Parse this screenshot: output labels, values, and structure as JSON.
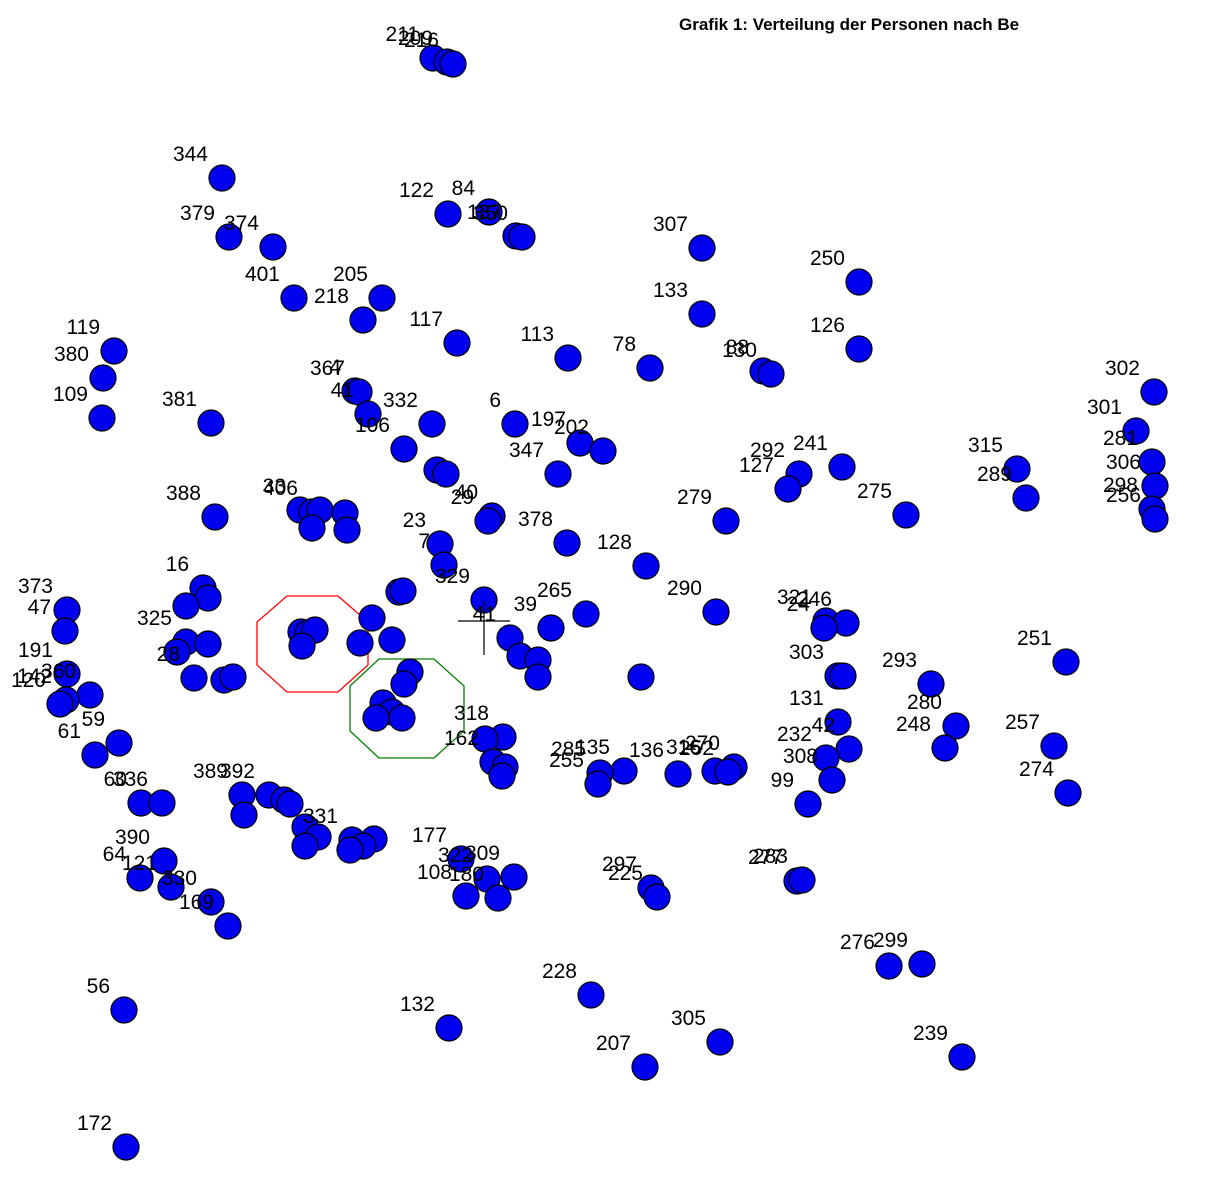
{
  "chart_data": {
    "type": "scatter",
    "title": "Grafik 1: Verteilung der Personen nach Be",
    "xlabel": "",
    "ylabel": "",
    "xlim": [
      0,
      1215
    ],
    "ylim": [
      0,
      1194
    ],
    "grid": false,
    "colors": {
      "point_fill": "#0000ee",
      "point_stroke": "#000000",
      "hull_1": "#ff0000",
      "hull_2": "#008000",
      "centroid": "#000000"
    },
    "hulls": [
      {
        "name": "",
        "color": "#ff0000",
        "vertices": [
          [
            287,
            596
          ],
          [
            338,
            596
          ],
          [
            368,
            622
          ],
          [
            368,
            665
          ],
          [
            338,
            692
          ],
          [
            287,
            692
          ],
          [
            257,
            665
          ],
          [
            257,
            622
          ]
        ]
      },
      {
        "name": "",
        "color": "#008000",
        "vertices": [
          [
            379,
            659
          ],
          [
            434,
            659
          ],
          [
            464,
            686
          ],
          [
            464,
            731
          ],
          [
            434,
            758
          ],
          [
            379,
            758
          ],
          [
            350,
            731
          ],
          [
            350,
            686
          ]
        ]
      }
    ],
    "centroid": {
      "x": 484,
      "y": 621
    },
    "points": [
      {
        "x": 433,
        "y": 58,
        "label": "211"
      },
      {
        "x": 447,
        "y": 62,
        "label": "209"
      },
      {
        "x": 453,
        "y": 64,
        "label": "216"
      },
      {
        "x": 222,
        "y": 178,
        "label": "344"
      },
      {
        "x": 489,
        "y": 212,
        "label": "84"
      },
      {
        "x": 448,
        "y": 214,
        "label": "122"
      },
      {
        "x": 516,
        "y": 236,
        "label": "137"
      },
      {
        "x": 522,
        "y": 237,
        "label": "350"
      },
      {
        "x": 229,
        "y": 237,
        "label": "379"
      },
      {
        "x": 273,
        "y": 247,
        "label": "374"
      },
      {
        "x": 702,
        "y": 248,
        "label": "307"
      },
      {
        "x": 859,
        "y": 282,
        "label": "250"
      },
      {
        "x": 294,
        "y": 298,
        "label": "401"
      },
      {
        "x": 382,
        "y": 298,
        "label": "205"
      },
      {
        "x": 363,
        "y": 320,
        "label": "218"
      },
      {
        "x": 702,
        "y": 314,
        "label": "133"
      },
      {
        "x": 457,
        "y": 343,
        "label": "117"
      },
      {
        "x": 859,
        "y": 349,
        "label": "126"
      },
      {
        "x": 114,
        "y": 351,
        "label": "119"
      },
      {
        "x": 568,
        "y": 358,
        "label": "113"
      },
      {
        "x": 103,
        "y": 378,
        "label": "380"
      },
      {
        "x": 650,
        "y": 368,
        "label": "78"
      },
      {
        "x": 763,
        "y": 371,
        "label": "88"
      },
      {
        "x": 771,
        "y": 374,
        "label": "130"
      },
      {
        "x": 355,
        "y": 391,
        "label": "4"
      },
      {
        "x": 359,
        "y": 392,
        "label": "367"
      },
      {
        "x": 368,
        "y": 414,
        "label": "41"
      },
      {
        "x": 1154,
        "y": 392,
        "label": "302"
      },
      {
        "x": 102,
        "y": 418,
        "label": "109"
      },
      {
        "x": 211,
        "y": 423,
        "label": "381"
      },
      {
        "x": 432,
        "y": 424,
        "label": "332"
      },
      {
        "x": 515,
        "y": 424,
        "label": "6"
      },
      {
        "x": 404,
        "y": 449,
        "label": "106"
      },
      {
        "x": 1136,
        "y": 431,
        "label": "301"
      },
      {
        "x": 580,
        "y": 443,
        "label": "197"
      },
      {
        "x": 603,
        "y": 451,
        "label": "202"
      },
      {
        "x": 437,
        "y": 470,
        "label": ""
      },
      {
        "x": 446,
        "y": 474,
        "label": ""
      },
      {
        "x": 558,
        "y": 474,
        "label": "347"
      },
      {
        "x": 842,
        "y": 467,
        "label": "241"
      },
      {
        "x": 799,
        "y": 474,
        "label": "292"
      },
      {
        "x": 788,
        "y": 489,
        "label": "127"
      },
      {
        "x": 1017,
        "y": 469,
        "label": "315"
      },
      {
        "x": 1152,
        "y": 462,
        "label": "281"
      },
      {
        "x": 1155,
        "y": 486,
        "label": "306"
      },
      {
        "x": 1026,
        "y": 498,
        "label": "289"
      },
      {
        "x": 1152,
        "y": 509,
        "label": "298"
      },
      {
        "x": 1155,
        "y": 519,
        "label": "256"
      },
      {
        "x": 906,
        "y": 515,
        "label": "275"
      },
      {
        "x": 726,
        "y": 521,
        "label": "279"
      },
      {
        "x": 492,
        "y": 516,
        "label": "40"
      },
      {
        "x": 488,
        "y": 521,
        "label": "29"
      },
      {
        "x": 215,
        "y": 517,
        "label": "388"
      },
      {
        "x": 300,
        "y": 510,
        "label": "33"
      },
      {
        "x": 312,
        "y": 512,
        "label": "406"
      },
      {
        "x": 320,
        "y": 510,
        "label": ""
      },
      {
        "x": 345,
        "y": 513,
        "label": ""
      },
      {
        "x": 347,
        "y": 530,
        "label": ""
      },
      {
        "x": 312,
        "y": 528,
        "label": ""
      },
      {
        "x": 567,
        "y": 543,
        "label": "378"
      },
      {
        "x": 440,
        "y": 544,
        "label": "23"
      },
      {
        "x": 444,
        "y": 565,
        "label": "7"
      },
      {
        "x": 646,
        "y": 566,
        "label": "128"
      },
      {
        "x": 203,
        "y": 588,
        "label": "16"
      },
      {
        "x": 208,
        "y": 598,
        "label": ""
      },
      {
        "x": 186,
        "y": 606,
        "label": ""
      },
      {
        "x": 67,
        "y": 610,
        "label": "373"
      },
      {
        "x": 65,
        "y": 631,
        "label": "47"
      },
      {
        "x": 399,
        "y": 592,
        "label": ""
      },
      {
        "x": 403,
        "y": 591,
        "label": ""
      },
      {
        "x": 484,
        "y": 600,
        "label": "329"
      },
      {
        "x": 586,
        "y": 614,
        "label": "265"
      },
      {
        "x": 716,
        "y": 612,
        "label": "290"
      },
      {
        "x": 826,
        "y": 621,
        "label": "321"
      },
      {
        "x": 846,
        "y": 623,
        "label": "246"
      },
      {
        "x": 824,
        "y": 628,
        "label": "24"
      },
      {
        "x": 372,
        "y": 618,
        "label": ""
      },
      {
        "x": 551,
        "y": 628,
        "label": "39"
      },
      {
        "x": 510,
        "y": 638,
        "label": "41"
      },
      {
        "x": 301,
        "y": 632,
        "label": ""
      },
      {
        "x": 308,
        "y": 633,
        "label": ""
      },
      {
        "x": 315,
        "y": 630,
        "label": ""
      },
      {
        "x": 302,
        "y": 646,
        "label": ""
      },
      {
        "x": 360,
        "y": 643,
        "label": ""
      },
      {
        "x": 392,
        "y": 640,
        "label": ""
      },
      {
        "x": 186,
        "y": 642,
        "label": "325"
      },
      {
        "x": 208,
        "y": 644,
        "label": ""
      },
      {
        "x": 177,
        "y": 652,
        "label": ""
      },
      {
        "x": 520,
        "y": 656,
        "label": ""
      },
      {
        "x": 538,
        "y": 660,
        "label": ""
      },
      {
        "x": 1066,
        "y": 662,
        "label": "251"
      },
      {
        "x": 538,
        "y": 677,
        "label": ""
      },
      {
        "x": 641,
        "y": 677,
        "label": ""
      },
      {
        "x": 838,
        "y": 676,
        "label": "303"
      },
      {
        "x": 843,
        "y": 676,
        "label": ""
      },
      {
        "x": 931,
        "y": 684,
        "label": "293"
      },
      {
        "x": 67,
        "y": 674,
        "label": "191"
      },
      {
        "x": 90,
        "y": 695,
        "label": "360"
      },
      {
        "x": 66,
        "y": 700,
        "label": "142"
      },
      {
        "x": 60,
        "y": 704,
        "label": "120"
      },
      {
        "x": 194,
        "y": 678,
        "label": "28"
      },
      {
        "x": 224,
        "y": 680,
        "label": ""
      },
      {
        "x": 233,
        "y": 677,
        "label": ""
      },
      {
        "x": 410,
        "y": 672,
        "label": ""
      },
      {
        "x": 404,
        "y": 684,
        "label": ""
      },
      {
        "x": 383,
        "y": 703,
        "label": ""
      },
      {
        "x": 392,
        "y": 712,
        "label": ""
      },
      {
        "x": 402,
        "y": 718,
        "label": ""
      },
      {
        "x": 376,
        "y": 718,
        "label": ""
      },
      {
        "x": 838,
        "y": 722,
        "label": "131"
      },
      {
        "x": 956,
        "y": 726,
        "label": "280"
      },
      {
        "x": 945,
        "y": 748,
        "label": "248"
      },
      {
        "x": 1054,
        "y": 746,
        "label": "257"
      },
      {
        "x": 1068,
        "y": 793,
        "label": "274"
      },
      {
        "x": 119,
        "y": 743,
        "label": "59"
      },
      {
        "x": 95,
        "y": 755,
        "label": "61"
      },
      {
        "x": 503,
        "y": 737,
        "label": "318"
      },
      {
        "x": 485,
        "y": 739,
        "label": ""
      },
      {
        "x": 493,
        "y": 762,
        "label": "162"
      },
      {
        "x": 505,
        "y": 767,
        "label": ""
      },
      {
        "x": 502,
        "y": 776,
        "label": ""
      },
      {
        "x": 849,
        "y": 749,
        "label": "42"
      },
      {
        "x": 826,
        "y": 758,
        "label": "232"
      },
      {
        "x": 832,
        "y": 780,
        "label": "308"
      },
      {
        "x": 808,
        "y": 804,
        "label": "99"
      },
      {
        "x": 624,
        "y": 771,
        "label": "135"
      },
      {
        "x": 600,
        "y": 773,
        "label": "285"
      },
      {
        "x": 598,
        "y": 784,
        "label": "255"
      },
      {
        "x": 678,
        "y": 774,
        "label": "136"
      },
      {
        "x": 715,
        "y": 771,
        "label": "316"
      },
      {
        "x": 734,
        "y": 767,
        "label": "270"
      },
      {
        "x": 728,
        "y": 772,
        "label": "252"
      },
      {
        "x": 242,
        "y": 795,
        "label": "389"
      },
      {
        "x": 244,
        "y": 815,
        "label": ""
      },
      {
        "x": 269,
        "y": 795,
        "label": "392"
      },
      {
        "x": 284,
        "y": 800,
        "label": ""
      },
      {
        "x": 290,
        "y": 804,
        "label": ""
      },
      {
        "x": 305,
        "y": 827,
        "label": ""
      },
      {
        "x": 318,
        "y": 837,
        "label": ""
      },
      {
        "x": 305,
        "y": 846,
        "label": ""
      },
      {
        "x": 141,
        "y": 803,
        "label": "60"
      },
      {
        "x": 162,
        "y": 803,
        "label": "336"
      },
      {
        "x": 352,
        "y": 840,
        "label": "331"
      },
      {
        "x": 374,
        "y": 839,
        "label": ""
      },
      {
        "x": 363,
        "y": 846,
        "label": ""
      },
      {
        "x": 350,
        "y": 850,
        "label": ""
      },
      {
        "x": 164,
        "y": 861,
        "label": "390"
      },
      {
        "x": 140,
        "y": 878,
        "label": "64"
      },
      {
        "x": 171,
        "y": 887,
        "label": "121"
      },
      {
        "x": 211,
        "y": 902,
        "label": "330"
      },
      {
        "x": 228,
        "y": 926,
        "label": "169"
      },
      {
        "x": 461,
        "y": 859,
        "label": "177"
      },
      {
        "x": 487,
        "y": 879,
        "label": "322"
      },
      {
        "x": 514,
        "y": 877,
        "label": "309"
      },
      {
        "x": 466,
        "y": 896,
        "label": "108"
      },
      {
        "x": 498,
        "y": 898,
        "label": "180"
      },
      {
        "x": 651,
        "y": 888,
        "label": "297"
      },
      {
        "x": 657,
        "y": 897,
        "label": "225"
      },
      {
        "x": 797,
        "y": 881,
        "label": "277"
      },
      {
        "x": 802,
        "y": 880,
        "label": "283"
      },
      {
        "x": 889,
        "y": 966,
        "label": "276"
      },
      {
        "x": 922,
        "y": 964,
        "label": "299"
      },
      {
        "x": 591,
        "y": 995,
        "label": "228"
      },
      {
        "x": 124,
        "y": 1010,
        "label": "56"
      },
      {
        "x": 449,
        "y": 1028,
        "label": "132"
      },
      {
        "x": 720,
        "y": 1042,
        "label": "305"
      },
      {
        "x": 645,
        "y": 1067,
        "label": "207"
      },
      {
        "x": 962,
        "y": 1057,
        "label": "239"
      },
      {
        "x": 126,
        "y": 1147,
        "label": "172"
      }
    ]
  }
}
